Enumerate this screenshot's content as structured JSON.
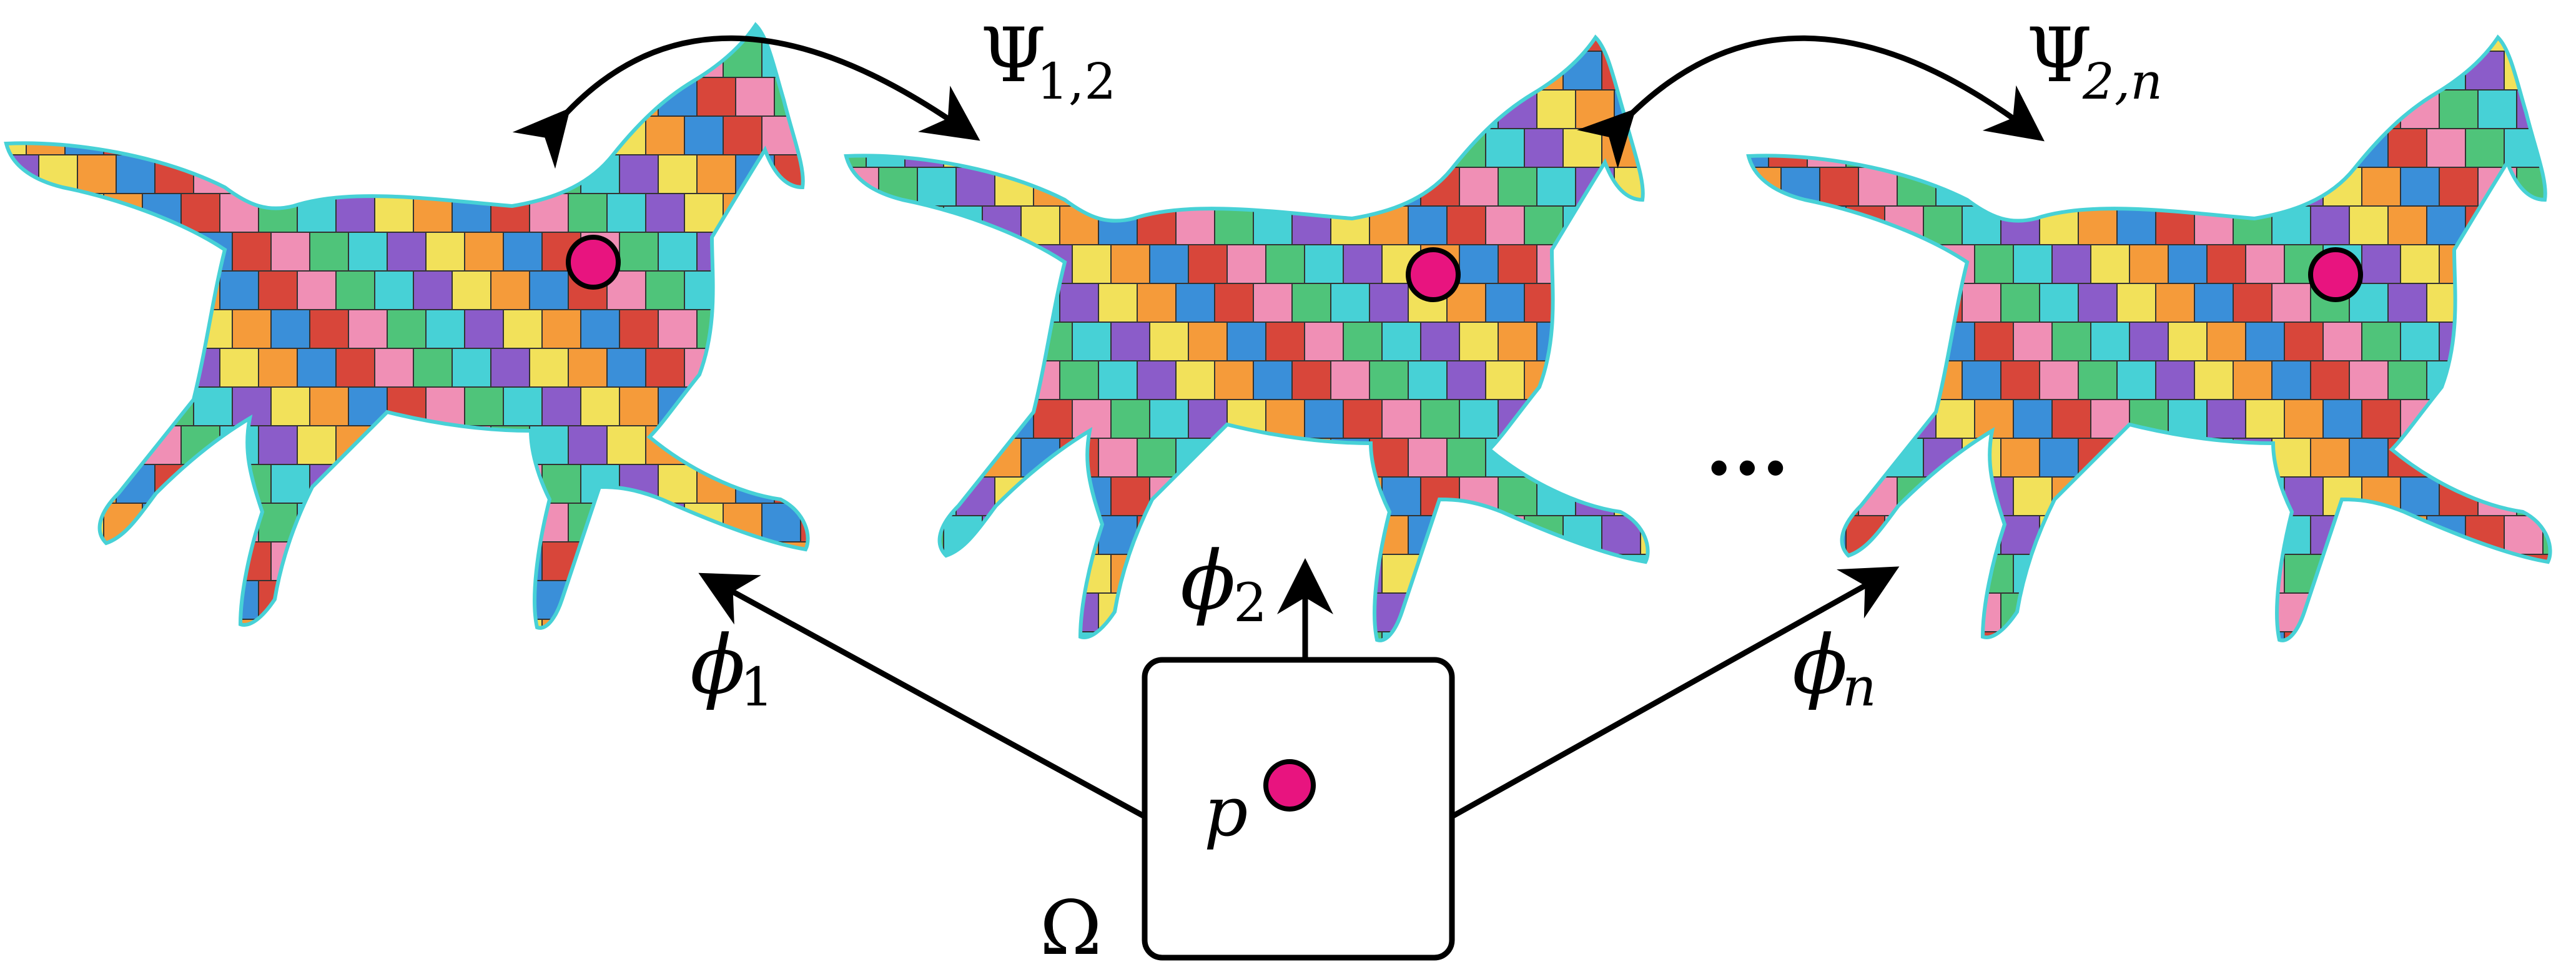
{
  "diagram": {
    "domain_label": "Ω",
    "point_label": "p",
    "maps": [
      {
        "id": "phi1",
        "symbol": "ϕ",
        "subscript": "1"
      },
      {
        "id": "phi2",
        "symbol": "ϕ",
        "subscript": "2"
      },
      {
        "id": "phin",
        "symbol": "ϕ",
        "subscript": "n"
      }
    ],
    "correspondences": [
      {
        "id": "psi12",
        "symbol": "Ψ",
        "subscript": "1,2"
      },
      {
        "id": "psi2n",
        "symbol": "Ψ",
        "subscript": "2,n"
      }
    ],
    "ellipsis": "...",
    "shapes": [
      {
        "id": "horse-1",
        "description": "textured horse mesh 1"
      },
      {
        "id": "horse-2",
        "description": "textured horse mesh 2"
      },
      {
        "id": "horse-n",
        "description": "textured horse mesh n"
      }
    ],
    "colors": {
      "point_fill": "#e8147f",
      "stroke": "#000000",
      "texture": [
        "#d8463a",
        "#f2e15a",
        "#4fc47a",
        "#3a8fd9",
        "#8b5cc9",
        "#f08fb5",
        "#f59b3a",
        "#47d1d6"
      ]
    }
  }
}
